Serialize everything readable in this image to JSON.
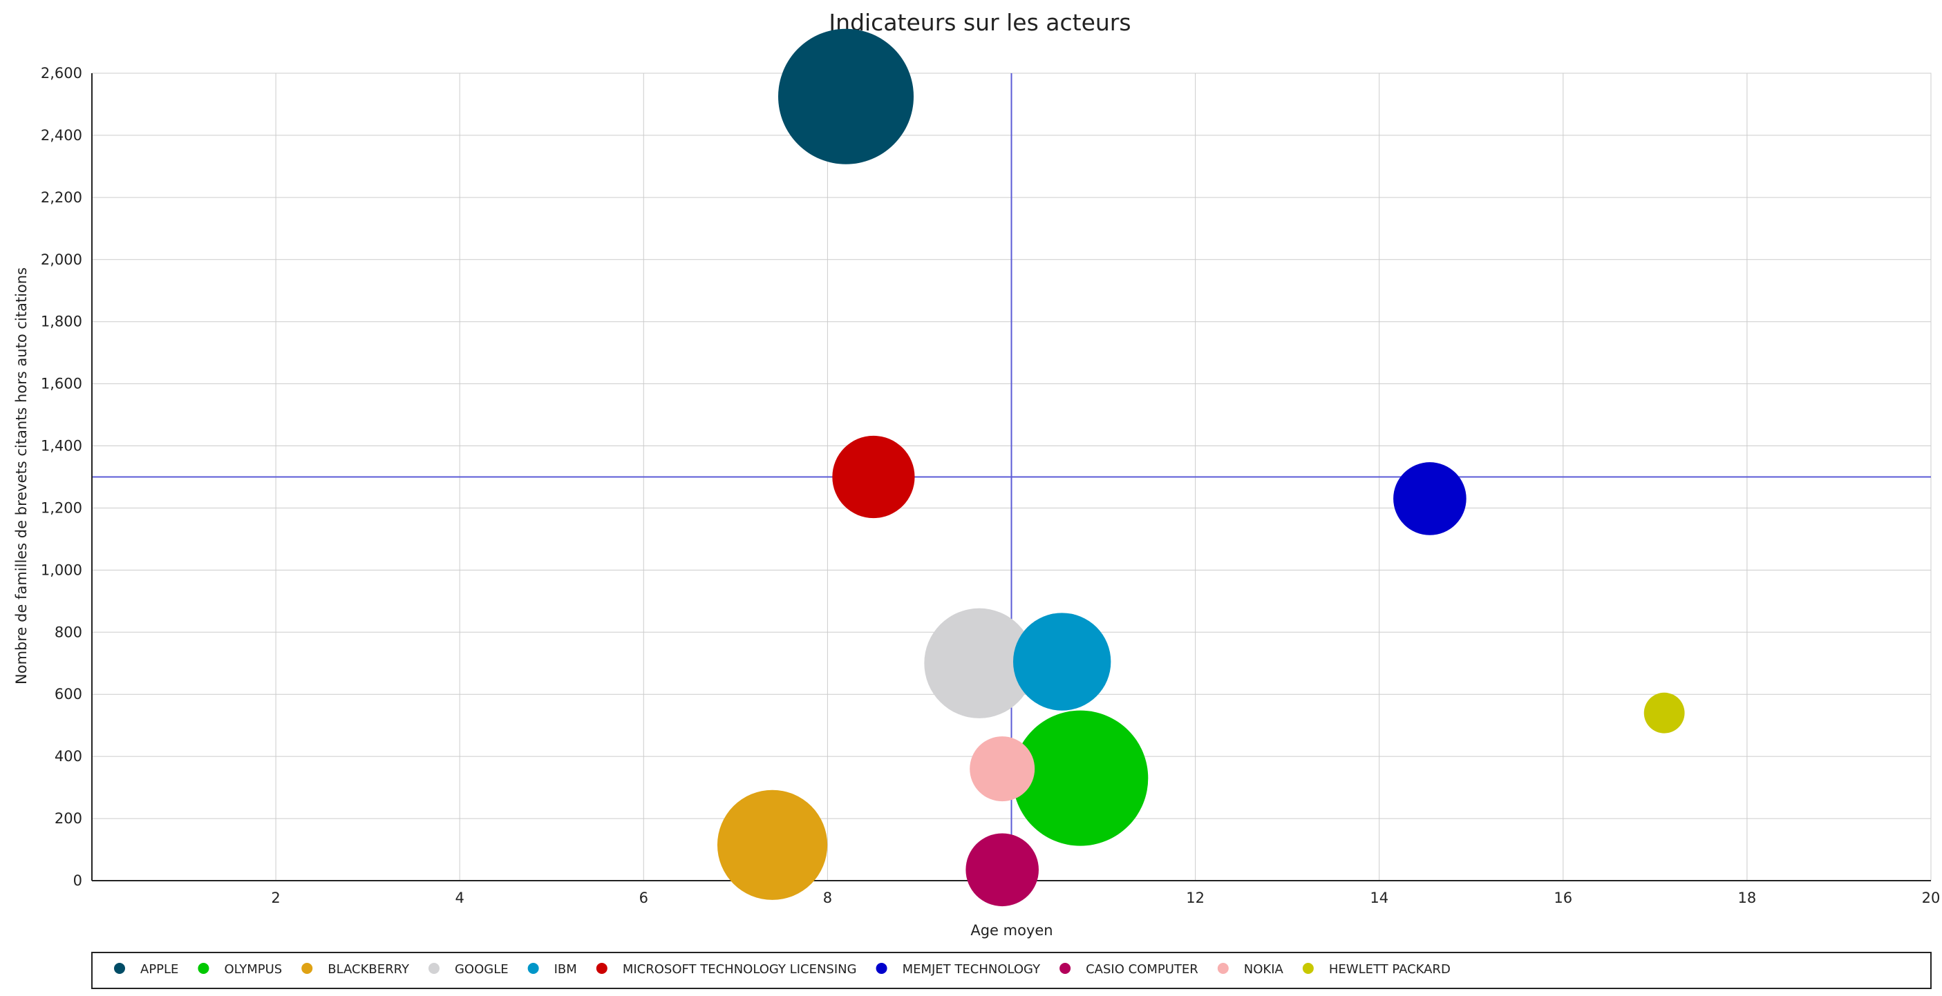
{
  "chart_data": {
    "type": "scatter",
    "subtype": "bubble",
    "title": "Indicateurs sur les acteurs",
    "xlabel": "Age moyen",
    "ylabel": "Nombre de familles de brevets citants hors auto citations",
    "xlim": [
      0,
      20
    ],
    "ylim": [
      0,
      2600
    ],
    "x_ticks": [
      2,
      4,
      6,
      8,
      10,
      12,
      14,
      16,
      18,
      20
    ],
    "y_ticks": [
      0,
      200,
      400,
      600,
      800,
      1000,
      1200,
      1400,
      1600,
      1800,
      2000,
      2200,
      2400,
      2600
    ],
    "x_tick_labels": [
      "2",
      "4",
      "6",
      "8",
      "10",
      "12",
      "14",
      "16",
      "18",
      "20"
    ],
    "y_tick_labels": [
      "0",
      "200",
      "400",
      "600",
      "800",
      "1,000",
      "1,200",
      "1,400",
      "1,600",
      "1,800",
      "2,000",
      "2,200",
      "2,400",
      "2,600"
    ],
    "grid": true,
    "legend_position": "bottom",
    "reference_lines": {
      "x": 10,
      "y": 1300,
      "color": "#5b5bd6"
    },
    "series": [
      {
        "name": "APPLE",
        "color": "#004c66",
        "x": 8.2,
        "y": 2525,
        "size": 100
      },
      {
        "name": "OLYMPUS",
        "color": "#00c800",
        "x": 10.75,
        "y": 330,
        "size": 100
      },
      {
        "name": "BLACKBERRY",
        "color": "#dfa214",
        "x": 7.4,
        "y": 115,
        "size": 66
      },
      {
        "name": "GOOGLE",
        "color": "#d2d2d4",
        "x": 9.65,
        "y": 700,
        "size": 66
      },
      {
        "name": "IBM",
        "color": "#0096c8",
        "x": 10.55,
        "y": 705,
        "size": 52
      },
      {
        "name": "MICROSOFT TECHNOLOGY LICENSING",
        "color": "#cc0000",
        "x": 8.5,
        "y": 1300,
        "size": 37
      },
      {
        "name": "MEMJET TECHNOLOGY",
        "color": "#0000cc",
        "x": 14.55,
        "y": 1230,
        "size": 29
      },
      {
        "name": "CASIO COMPUTER",
        "color": "#b3005a",
        "x": 9.9,
        "y": 35,
        "size": 29
      },
      {
        "name": "NOKIA",
        "color": "#f8b0b0",
        "x": 9.9,
        "y": 360,
        "size": 23
      },
      {
        "name": "HEWLETT PACKARD",
        "color": "#c8c800",
        "x": 17.1,
        "y": 540,
        "size": 9
      }
    ]
  }
}
